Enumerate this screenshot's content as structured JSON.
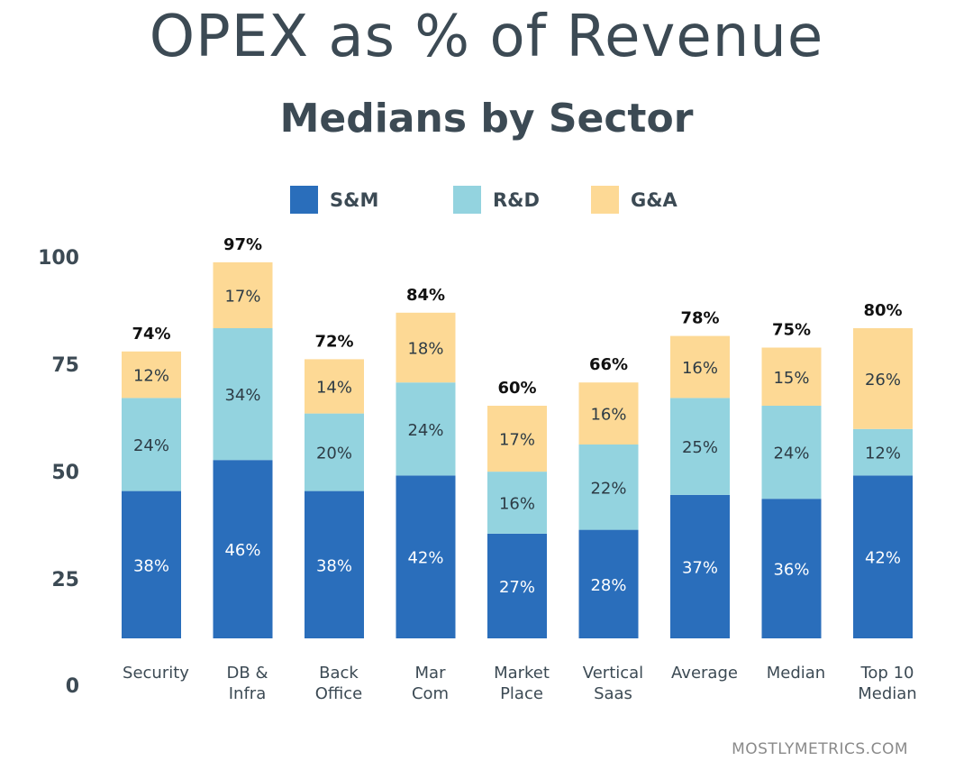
{
  "source": "MOSTLYMETRICS.COM",
  "chart_data": {
    "type": "bar",
    "stacked": true,
    "title": "OPEX as % of Revenue",
    "subtitle": "Medians by Sector",
    "categories": [
      [
        "Security"
      ],
      [
        "DB &",
        "Infra"
      ],
      [
        "Back",
        "Office"
      ],
      [
        "Mar",
        "Com"
      ],
      [
        "Market",
        "Place"
      ],
      [
        "Vertical",
        "Saas"
      ],
      [
        "Average"
      ],
      [
        "Median"
      ],
      [
        "Top 10",
        "Median"
      ]
    ],
    "series": [
      {
        "name": "S&M",
        "color": "#2a6ebb",
        "text_color": "#ffffff",
        "values": [
          38,
          46,
          38,
          42,
          27,
          28,
          37,
          36,
          42
        ],
        "labels": [
          "38%",
          "46%",
          "38%",
          "42%",
          "27%",
          "28%",
          "37%",
          "36%",
          "42%"
        ]
      },
      {
        "name": "R&D",
        "color": "#93d3df",
        "text_color": "#2d3b45",
        "values": [
          24,
          34,
          20,
          24,
          16,
          22,
          25,
          24,
          12
        ],
        "labels": [
          "24%",
          "34%",
          "20%",
          "24%",
          "16%",
          "22%",
          "25%",
          "24%",
          "12%"
        ]
      },
      {
        "name": "G&A",
        "color": "#fdd995",
        "text_color": "#2d3b45",
        "values": [
          12,
          17,
          14,
          18,
          17,
          16,
          16,
          15,
          26
        ],
        "labels": [
          "12%",
          "17%",
          "14%",
          "18%",
          "17%",
          "16%",
          "16%",
          "15%",
          "26%"
        ]
      }
    ],
    "totals": [
      "74%",
      "97%",
      "72%",
      "84%",
      "60%",
      "66%",
      "78%",
      "75%",
      "80%"
    ],
    "yticks": [
      0,
      25,
      50,
      75,
      100
    ],
    "ylim": [
      0,
      100
    ],
    "legend_position": "top",
    "grid": false
  }
}
